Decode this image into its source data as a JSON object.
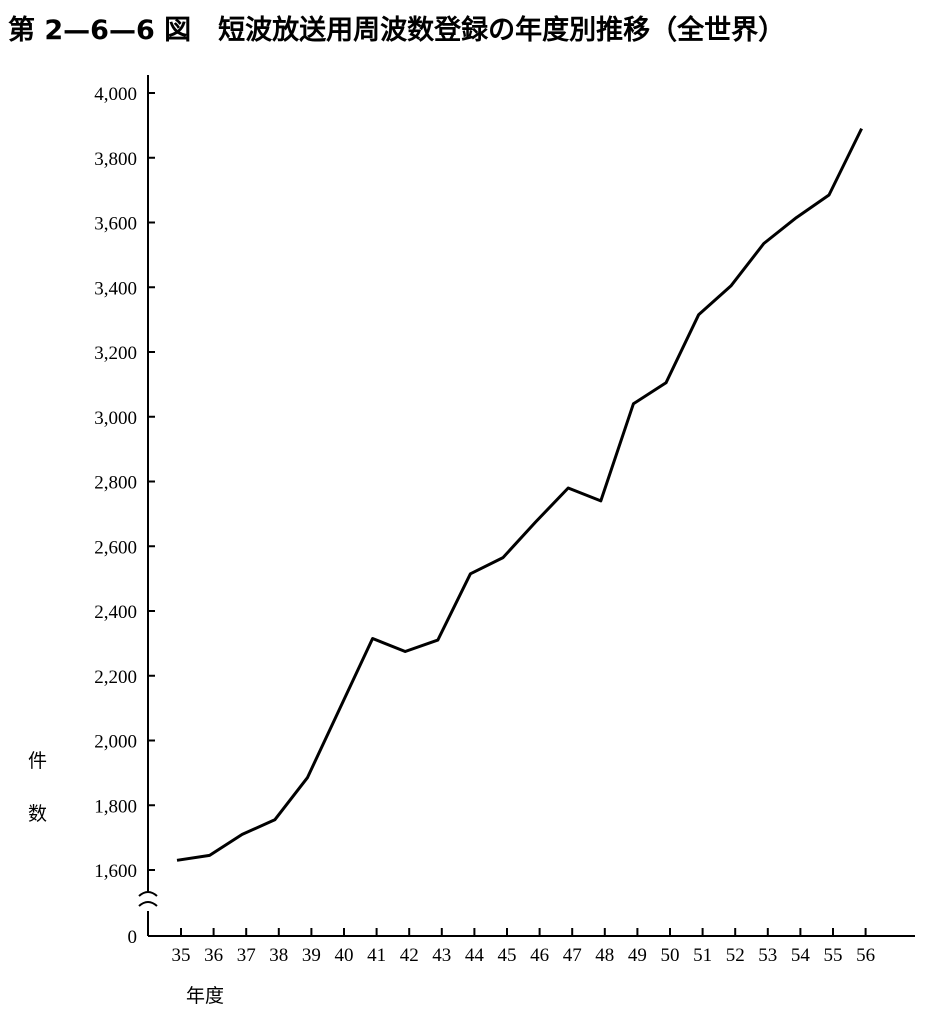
{
  "chart_data": {
    "type": "line",
    "title": "第 2—6—6 図　短波放送用周波数登録の年度別推移（全世界）",
    "xlabel": "年度",
    "ylabel": "件数",
    "categories": [
      "35",
      "36",
      "37",
      "38",
      "39",
      "40",
      "41",
      "42",
      "43",
      "44",
      "45",
      "46",
      "47",
      "48",
      "49",
      "50",
      "51",
      "52",
      "53",
      "54",
      "55",
      "56"
    ],
    "y_ticks": [
      0,
      1600,
      1800,
      2000,
      2200,
      2400,
      2600,
      2800,
      3000,
      3200,
      3400,
      3600,
      3800,
      4000
    ],
    "y_tick_labels": [
      "0",
      "1,600",
      "1,800",
      "2,000",
      "2,200",
      "2,400",
      "2,600",
      "2,800",
      "3,000",
      "3,200",
      "3,400",
      "3,600",
      "3,800",
      "4,000"
    ],
    "ylim": [
      1600,
      4000
    ],
    "axis_break": true,
    "grid": false,
    "legend": "none",
    "series": [
      {
        "values": [
          1630,
          1645,
          1710,
          1755,
          1885,
          2100,
          2315,
          2275,
          2310,
          2515,
          2565,
          2675,
          2780,
          2740,
          3040,
          3105,
          3315,
          3405,
          3535,
          3615,
          3685,
          3890
        ]
      }
    ]
  },
  "colors": {
    "line": "#000000",
    "axis": "#000000",
    "background": "#ffffff"
  }
}
